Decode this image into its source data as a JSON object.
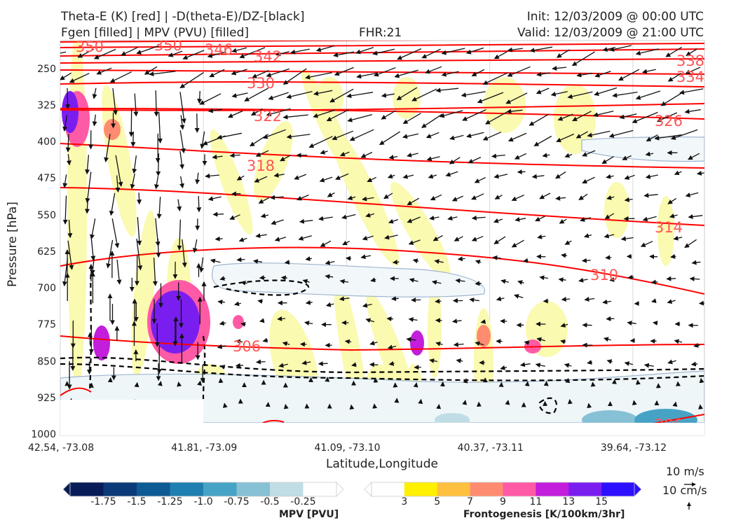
{
  "header": {
    "title_line1": "Theta-E (K) [red] | -D(theta-E)/DZ-[black]",
    "title_line2": "Fgen [filled] | MPV (PVU) [filled]",
    "fhr": "FHR:21",
    "init": "Init: 12/03/2009 @ 00:00 UTC",
    "valid": "Valid: 12/03/2009 @ 21:00 UTC"
  },
  "chart_data": {
    "type": "cross-section",
    "xlabel": "Latitude,Longitude",
    "ylabel": "Pressure [hPa]",
    "x_ticks": [
      "42.54, -73.08",
      "41.81, -73.09",
      "41.09, -73.10",
      "40.37, -73.11",
      "39.64, -73.12"
    ],
    "y_ticks": [
      250,
      325,
      400,
      475,
      550,
      625,
      700,
      775,
      850,
      925,
      1000
    ],
    "ylim": [
      1000,
      190
    ],
    "y_inverted": true,
    "theta_e_contours": [
      {
        "value": 350,
        "label": "350"
      },
      {
        "value": 350,
        "label": "350"
      },
      {
        "value": 346,
        "label": "346"
      },
      {
        "value": 342,
        "label": "342"
      },
      {
        "value": 338,
        "label": "338"
      },
      {
        "value": 334,
        "label": "334"
      },
      {
        "value": 330,
        "label": "330"
      },
      {
        "value": 326,
        "label": "326"
      },
      {
        "value": 322,
        "label": "322"
      },
      {
        "value": 318,
        "label": "318"
      },
      {
        "value": 314,
        "label": "314"
      },
      {
        "value": 310,
        "label": "310"
      },
      {
        "value": 306,
        "label": "306"
      },
      {
        "value": 306,
        "label": "306"
      }
    ],
    "contour_colors": {
      "theta_e": "#ff0000",
      "dtheta_dz": "#000000",
      "mpv_edge": "#a0b4d0"
    },
    "mpv_colorbar": {
      "title": "MPV [PVU]",
      "labels": [
        "-1.75",
        "-1.5",
        "-1.25",
        "-1.0",
        "-0.75",
        "-0.5",
        "-0.25"
      ],
      "colors": [
        "#081d58",
        "#0b3a78",
        "#0e5a94",
        "#1f7fb0",
        "#47a3c6",
        "#87c1d6",
        "#c0dde5",
        "#ffffff"
      ]
    },
    "fgen_colorbar": {
      "title": "Frontogenesis [K/100km/3hr]",
      "labels": [
        "3",
        "5",
        "7",
        "9",
        "11",
        "13",
        "15"
      ],
      "colors": [
        "#ffffff",
        "#ffef00",
        "#ffc040",
        "#ff8c70",
        "#ff5aa5",
        "#c21edc",
        "#7a1ef0",
        "#2d10ff"
      ]
    },
    "reference_vectors": [
      "10 m/s",
      "10 cm/s"
    ]
  }
}
